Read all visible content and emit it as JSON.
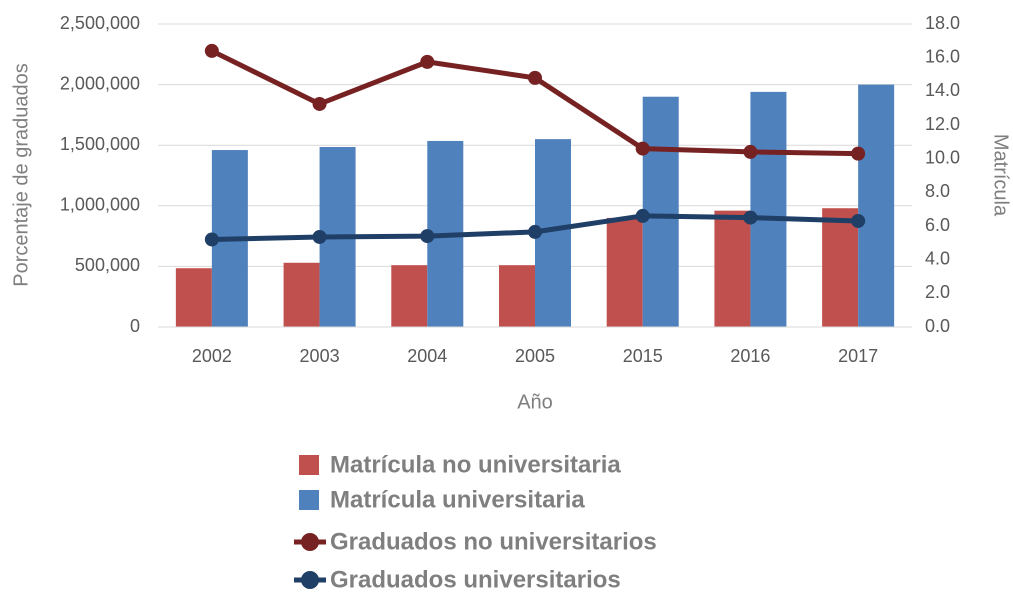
{
  "chart_data": {
    "type": "combo",
    "x_label": "Año",
    "y_label": "Porcentaje de graduados",
    "y2_label": "Matrícula",
    "categories": [
      "2002",
      "2003",
      "2004",
      "2005",
      "2015",
      "2016",
      "2017"
    ],
    "series": [
      {
        "name": "Matrícula no universitaria",
        "type": "bar",
        "color": "#c0504d",
        "values": [
          485000,
          530000,
          510000,
          510000,
          900000,
          960000,
          980000
        ]
      },
      {
        "name": "Matrícula universitaria",
        "type": "bar",
        "color": "#4f81bd",
        "values": [
          1460000,
          1485000,
          1535000,
          1550000,
          1900000,
          1940000,
          2000000
        ]
      },
      {
        "name": "Graduados no universitarios",
        "type": "line",
        "axis": "y2",
        "color": "#772222",
        "values": [
          16.4,
          13.25,
          15.75,
          14.8,
          10.6,
          10.4,
          10.3
        ]
      },
      {
        "name": "Graduados universitarios",
        "type": "line",
        "axis": "y2",
        "color": "#1f3f66",
        "values": [
          5.2,
          5.35,
          5.4,
          5.65,
          6.6,
          6.5,
          6.3
        ]
      }
    ],
    "ylim": [
      0,
      2500000
    ],
    "yticks": [
      0,
      {
        "value": 500000,
        "label": "500,000"
      },
      {
        "value": 1000000,
        "label": "1,000,000"
      },
      {
        "value": 1500000,
        "label": "1,500,000"
      },
      {
        "value": 2000000,
        "label": "2,000,000"
      },
      {
        "value": 2500000,
        "label": "2,500,000"
      }
    ],
    "y2lim": [
      0,
      18
    ],
    "y2ticks": [
      {
        "value": 0,
        "label": "0.0"
      },
      {
        "value": 2,
        "label": "2.0"
      },
      {
        "value": 4,
        "label": "4.0"
      },
      {
        "value": 6,
        "label": "6.0"
      },
      {
        "value": 8,
        "label": "8.0"
      },
      {
        "value": 10,
        "label": "10.0"
      },
      {
        "value": 12,
        "label": "12.0"
      },
      {
        "value": 14,
        "label": "14.0"
      },
      {
        "value": 16,
        "label": "16.0"
      },
      {
        "value": 18,
        "label": "18.0"
      }
    ],
    "grid": true,
    "legend": "bottom"
  }
}
